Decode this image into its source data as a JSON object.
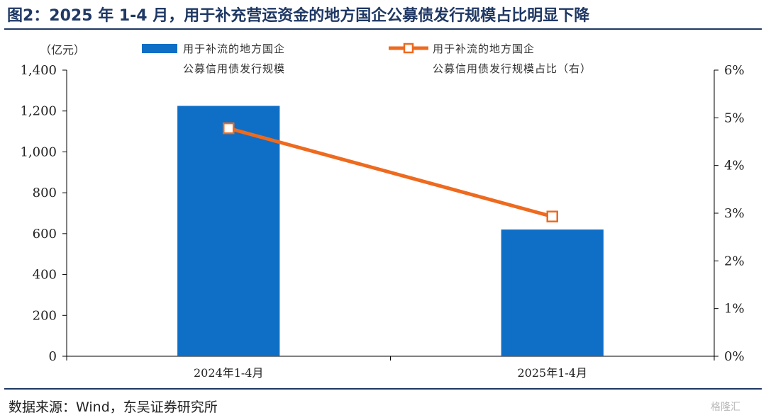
{
  "title": "图2：2025 年 1-4 月，用于补充营运资金的地方国企公募债发行规模占比明显下降",
  "source": "数据来源：Wind，东吴证券研究所",
  "watermark": "格隆汇",
  "colors": {
    "bar": "#0f6fc6",
    "line": "#ed6a1f",
    "title": "#1f3864"
  },
  "chart_data": {
    "type": "bar",
    "categories": [
      "2024年1-4月",
      "2025年1-4月"
    ],
    "left_unit": "（亿元）",
    "left_axis": {
      "ylim": [
        0,
        1400
      ],
      "ticks": [
        "0",
        "200",
        "400",
        "600",
        "800",
        "1,000",
        "1,200",
        "1,400"
      ]
    },
    "right_axis": {
      "ylim": [
        0,
        6
      ],
      "ticks": [
        "0%",
        "1%",
        "2%",
        "3%",
        "4%",
        "5%",
        "6%"
      ]
    },
    "series": [
      {
        "name_lines": [
          "用于补流的地方国企",
          "公募信用债发行规模"
        ],
        "type": "bar",
        "axis": "left",
        "values": [
          1225,
          620
        ]
      },
      {
        "name_lines": [
          "用于补流的地方国企",
          "公募信用债发行规模占比（右）"
        ],
        "type": "line",
        "axis": "right",
        "values": [
          4.78,
          2.93
        ]
      }
    ],
    "legend_position": "top",
    "grid": false
  }
}
